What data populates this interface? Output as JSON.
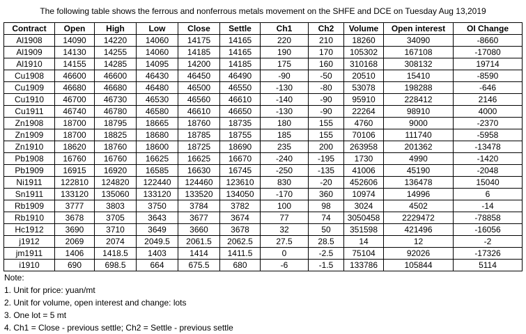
{
  "header": {
    "title": "The following table shows the ferrous and nonferrous metals movement on the SHFE and DCE on Tuesday Aug 13,2019"
  },
  "table": {
    "columns": [
      "Contract",
      "Open",
      "High",
      "Low",
      "Close",
      "Settle",
      "Ch1",
      "Ch2",
      "Volume",
      "Open interest",
      "OI Change"
    ],
    "rows": [
      [
        "Al1908",
        "14090",
        "14220",
        "14060",
        "14175",
        "14165",
        "220",
        "210",
        "18260",
        "34090",
        "-8660"
      ],
      [
        "Al1909",
        "14130",
        "14255",
        "14060",
        "14185",
        "14165",
        "190",
        "170",
        "105302",
        "167108",
        "-17080"
      ],
      [
        "Al1910",
        "14155",
        "14285",
        "14095",
        "14200",
        "14185",
        "175",
        "160",
        "310168",
        "308132",
        "19714"
      ],
      [
        "Cu1908",
        "46600",
        "46600",
        "46430",
        "46450",
        "46490",
        "-90",
        "-50",
        "20510",
        "15410",
        "-8590"
      ],
      [
        "Cu1909",
        "46680",
        "46680",
        "46480",
        "46500",
        "46550",
        "-130",
        "-80",
        "53078",
        "198288",
        "-646"
      ],
      [
        "Cu1910",
        "46700",
        "46730",
        "46530",
        "46560",
        "46610",
        "-140",
        "-90",
        "95910",
        "228412",
        "2146"
      ],
      [
        "Cu1911",
        "46740",
        "46780",
        "46580",
        "46610",
        "46650",
        "-130",
        "-90",
        "22264",
        "98910",
        "4000"
      ],
      [
        "Zn1908",
        "18700",
        "18795",
        "18665",
        "18760",
        "18735",
        "180",
        "155",
        "4760",
        "9000",
        "-2370"
      ],
      [
        "Zn1909",
        "18700",
        "18825",
        "18680",
        "18785",
        "18755",
        "185",
        "155",
        "70106",
        "111740",
        "-5958"
      ],
      [
        "Zn1910",
        "18620",
        "18760",
        "18600",
        "18725",
        "18690",
        "235",
        "200",
        "263958",
        "201362",
        "-13478"
      ],
      [
        "Pb1908",
        "16760",
        "16760",
        "16625",
        "16625",
        "16670",
        "-240",
        "-195",
        "1730",
        "4990",
        "-1420"
      ],
      [
        "Pb1909",
        "16915",
        "16920",
        "16585",
        "16630",
        "16745",
        "-250",
        "-135",
        "41006",
        "45190",
        "-2048"
      ],
      [
        "Ni1911",
        "122810",
        "124820",
        "122440",
        "124460",
        "123610",
        "830",
        "-20",
        "452606",
        "136478",
        "15040"
      ],
      [
        "Sn1911",
        "133120",
        "135060",
        "133120",
        "133520",
        "134050",
        "-170",
        "360",
        "10974",
        "14996",
        "6"
      ],
      [
        "Rb1909",
        "3777",
        "3803",
        "3750",
        "3784",
        "3782",
        "100",
        "98",
        "3024",
        "4502",
        "-14"
      ],
      [
        "Rb1910",
        "3678",
        "3705",
        "3643",
        "3677",
        "3674",
        "77",
        "74",
        "3050458",
        "2229472",
        "-78858"
      ],
      [
        "Hc1912",
        "3690",
        "3710",
        "3649",
        "3660",
        "3678",
        "32",
        "50",
        "351598",
        "421496",
        "-16056"
      ],
      [
        "j1912",
        "2069",
        "2074",
        "2049.5",
        "2061.5",
        "2062.5",
        "27.5",
        "28.5",
        "14",
        "12",
        "-2"
      ],
      [
        "jm1911",
        "1406",
        "1418.5",
        "1403",
        "1414",
        "1411.5",
        "0",
        "-2.5",
        "75104",
        "92026",
        "-17326"
      ],
      [
        "i1910",
        "690",
        "698.5",
        "664",
        "675.5",
        "680",
        "-6",
        "-1.5",
        "133786",
        "105844",
        "5114"
      ]
    ]
  },
  "notes": {
    "heading": "Note:",
    "items": [
      "1. Unit for price: yuan/mt",
      "2. Unit for volume, open interest and change: lots",
      "3. One lot = 5 mt",
      "4. Ch1 = Close - previous settle; Ch2 = Settle - previous settle"
    ]
  }
}
